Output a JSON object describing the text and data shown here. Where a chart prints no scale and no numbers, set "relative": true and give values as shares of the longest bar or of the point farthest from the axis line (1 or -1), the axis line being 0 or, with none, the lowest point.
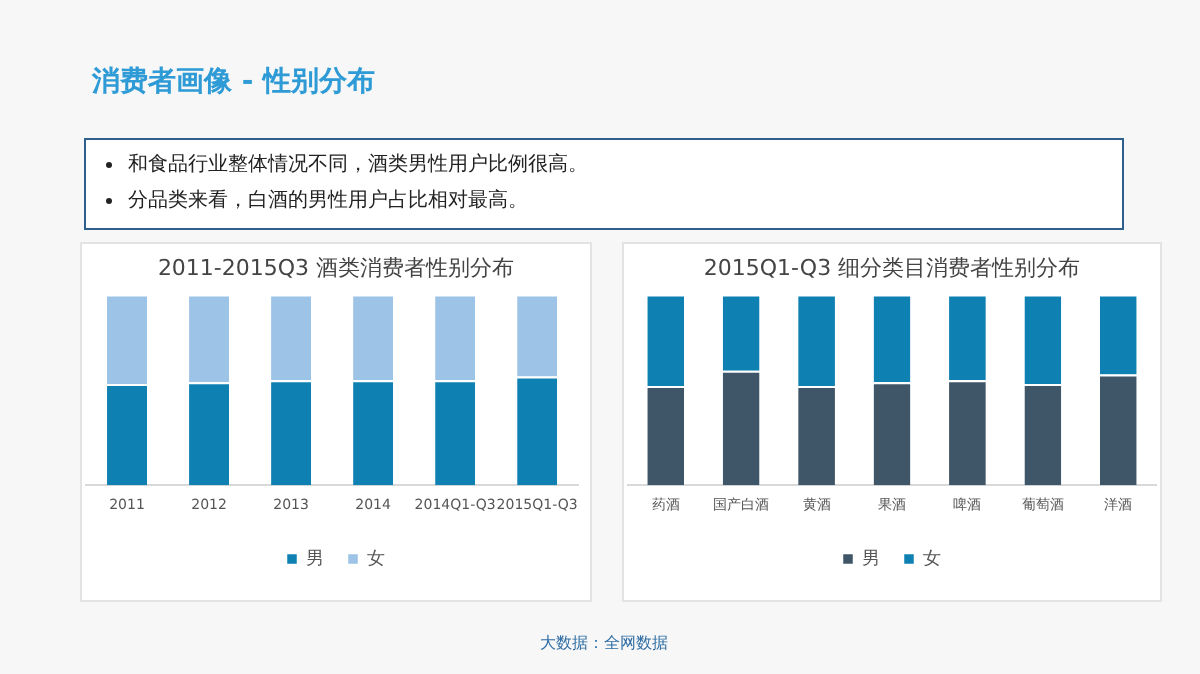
{
  "chart_data": [
    {
      "type": "bar",
      "title": "2011-2015Q3 酒类消费者性别分布",
      "categories": [
        "2011",
        "2012",
        "2013",
        "2014",
        "2014Q1-Q3",
        "2015Q1-Q3"
      ],
      "stacked": true,
      "relative": true,
      "legend": "bottom",
      "annotations": [
        "消费者画像 - 性别分布",
        "和食品行业整体情况不同，酒类男性用户比例很高。",
        "分品类来看，白酒的男性用户占比相对最高。",
        "大数据：全网数据"
      ],
      "series": [
        {
          "name": "男",
          "color": "#0e80b2",
          "values": [
            0.53,
            0.54,
            0.55,
            0.55,
            0.55,
            0.57
          ]
        },
        {
          "name": "女",
          "color": "#9dc3e6",
          "values": [
            0.47,
            0.46,
            0.45,
            0.45,
            0.45,
            0.43
          ]
        }
      ]
    },
    {
      "type": "bar",
      "title": "2015Q1-Q3 细分类目消费者性别分布",
      "categories": [
        "药酒",
        "国产白酒",
        "黄酒",
        "果酒",
        "啤酒",
        "葡萄酒",
        "洋酒"
      ],
      "stacked": true,
      "relative": true,
      "legend": "bottom",
      "series": [
        {
          "name": "男",
          "color": "#3f5669",
          "values": [
            0.52,
            0.6,
            0.52,
            0.54,
            0.55,
            0.53,
            0.58
          ]
        },
        {
          "name": "女",
          "color": "#0e80b2",
          "values": [
            0.48,
            0.4,
            0.48,
            0.46,
            0.45,
            0.47,
            0.42
          ]
        }
      ]
    }
  ]
}
